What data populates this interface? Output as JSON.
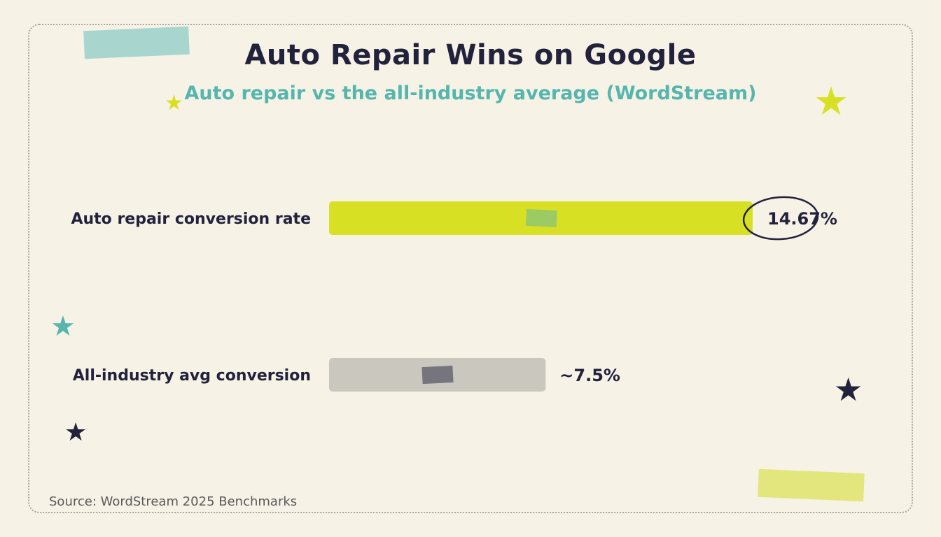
{
  "title": "Auto Repair Wins on Google",
  "subtitle": "Auto repair vs the all-industry average (WordStream)",
  "source": "Source: WordStream 2025 Benchmarks",
  "colors": {
    "background": "#f6f2e6",
    "accent_lime": "#d8e024",
    "accent_teal": "#56b6ae",
    "neutral_bar": "#cac7bf",
    "ink": "#22223d"
  },
  "decorations": {
    "star_glyph": "★",
    "tape_icons": [
      "tape-teal",
      "tape-yellow"
    ],
    "star_icons": [
      "star-lime-small",
      "star-lime-large",
      "star-teal",
      "star-navy-large",
      "star-navy-small"
    ]
  },
  "chart_data": {
    "type": "bar",
    "orientation": "horizontal",
    "title": "Auto Repair Wins on Google",
    "subtitle": "Auto repair vs the all-industry average (WordStream)",
    "categories": [
      "Auto repair conversion rate",
      "All-industry avg conversion"
    ],
    "values": [
      14.67,
      7.5
    ],
    "value_labels": [
      "14.67%",
      "~7.5%"
    ],
    "bar_colors": [
      "#d8e024",
      "#cac7bf"
    ],
    "highlight": "14.67%",
    "xlim": [
      0,
      14.67
    ],
    "grid": false,
    "legend": "none"
  }
}
